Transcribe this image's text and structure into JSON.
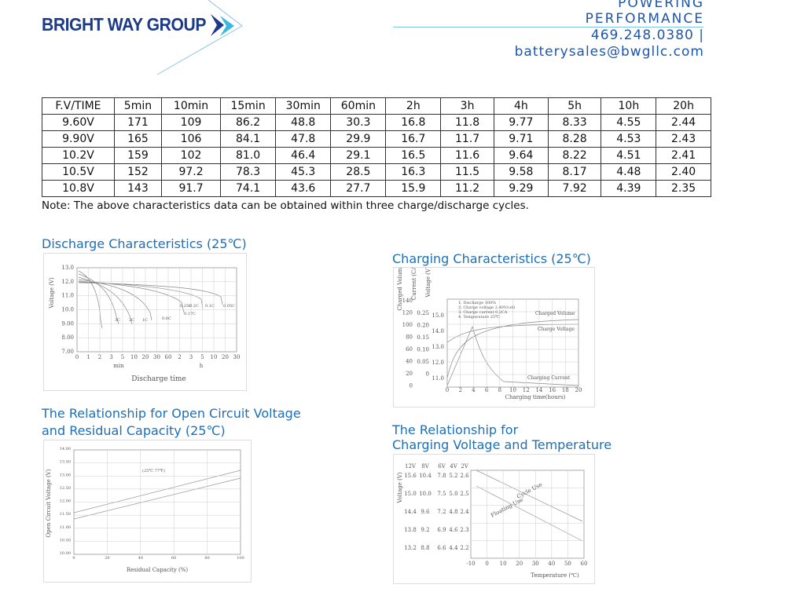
{
  "header": {
    "logo": "BRIGHT WAY GROUP",
    "tagline_1": "POWERING",
    "tagline_2": "PERFORMANCE",
    "phone": "469.248.0380 |",
    "email": "batterysales@bwgllc.com"
  },
  "table": {
    "header": [
      "F.V/TIME",
      "5min",
      "10min",
      "15min",
      "30min",
      "60min",
      "2h",
      "3h",
      "4h",
      "5h",
      "10h",
      "20h"
    ],
    "rows": [
      [
        "9.60V",
        "171",
        "109",
        "86.2",
        "48.8",
        "30.3",
        "16.8",
        "11.8",
        "9.77",
        "8.33",
        "4.55",
        "2.44"
      ],
      [
        "9.90V",
        "165",
        "106",
        "84.1",
        "47.8",
        "29.9",
        "16.7",
        "11.7",
        "9.71",
        "8.28",
        "4.53",
        "2.43"
      ],
      [
        "10.2V",
        "159",
        "102",
        "81.0",
        "46.4",
        "29.1",
        "16.5",
        "11.6",
        "9.64",
        "8.22",
        "4.51",
        "2.41"
      ],
      [
        "10.5V",
        "152",
        "97.2",
        "78.3",
        "45.3",
        "28.5",
        "16.3",
        "11.5",
        "9.58",
        "8.17",
        "4.48",
        "2.40"
      ],
      [
        "10.8V",
        "143",
        "91.7",
        "74.1",
        "43.6",
        "27.7",
        "15.9",
        "11.2",
        "9.29",
        "7.92",
        "4.39",
        "2.35"
      ]
    ],
    "note": "Note: The above characteristics data can be obtained within three charge/discharge cycles."
  },
  "figures": [
    {
      "title": [
        "Discharge Characteristics (25℃)"
      ],
      "y_label": "Voltage (V)",
      "yticks": [
        "13.0",
        "12.0",
        "11.0",
        "10.0",
        "9.00",
        "8.00",
        "7.00"
      ],
      "xticks": [
        "0",
        "1",
        "2",
        "3",
        "5",
        "10",
        "20",
        "30",
        "60",
        "2",
        "3",
        "5",
        "10",
        "20",
        "30"
      ],
      "x_units": [
        "min",
        "h"
      ],
      "x_label": "Discharge time",
      "curve_labels": [
        "3C",
        "2C",
        "1C",
        "0.6C",
        "0.2C",
        "0.1C",
        "0.05C",
        "0.25C",
        "0.17C"
      ]
    },
    {
      "title": [
        "Charging Characteristics (25℃)"
      ],
      "axis_labels": [
        "Charged Volume (%)",
        "Current (CA)",
        "Voltage (V)"
      ],
      "volume_ticks": [
        "140",
        "120",
        "100",
        "80",
        "60",
        "40",
        "20",
        "0"
      ],
      "current_ticks": [
        "0.25",
        "0.20",
        "0.15",
        "0.10",
        "0.05",
        "0"
      ],
      "voltage_ticks": [
        "15.0",
        "14.0",
        "13.0",
        "12.0",
        "11.0"
      ],
      "xticks": [
        "0",
        "2",
        "4",
        "6",
        "8",
        "10",
        "12",
        "14",
        "16",
        "18",
        "20"
      ],
      "x_label": "Charging time(hours)",
      "legend": [
        "1. Discharge 100%",
        "2. Charge voltage 2.40V/cell",
        "3. Charge current 0.2CA",
        "4. Temperature 25℃"
      ],
      "curve_labels": [
        "Charged Volume",
        "Charge Voltage",
        "Charging Current"
      ]
    },
    {
      "title": [
        "The Relationship for Open Circuit Voltage",
        "and Residual Capacity (25℃)"
      ],
      "y_label": "Open Circuit Voltage (V)",
      "yticks": [
        "14.00",
        "13.50",
        "13.00",
        "12.50",
        "12.00",
        "11.50",
        "11.00",
        "10.50",
        "10.00"
      ],
      "xticks": [
        "0",
        "20",
        "40",
        "60",
        "80",
        "100"
      ],
      "x_label": "Residual Capacity (%)",
      "note": "(25℃ 77℉)"
    },
    {
      "title": [
        "The Relationship for",
        "Charging Voltage and Temperature"
      ],
      "y_label": "Voltage (V)",
      "columns": [
        "12V",
        "8V",
        "6V",
        "4V",
        "2V"
      ],
      "rows": [
        [
          "15.6",
          "10.4",
          "7.8",
          "5.2",
          "2.6"
        ],
        [
          "15.0",
          "10.0",
          "7.5",
          "5.0",
          "2.5"
        ],
        [
          "14.4",
          "9.6",
          "7.2",
          "4.8",
          "2.4"
        ],
        [
          "13.8",
          "9.2",
          "6.9",
          "4.6",
          "2.3"
        ],
        [
          "13.2",
          "8.8",
          "6.6",
          "4.4",
          "2.2"
        ]
      ],
      "xticks": [
        "-10",
        "0",
        "10",
        "20",
        "30",
        "40",
        "50",
        "60"
      ],
      "x_label": "Temperature (℃)",
      "curve_labels": [
        "Cycle Use",
        "Floating Use"
      ]
    }
  ]
}
